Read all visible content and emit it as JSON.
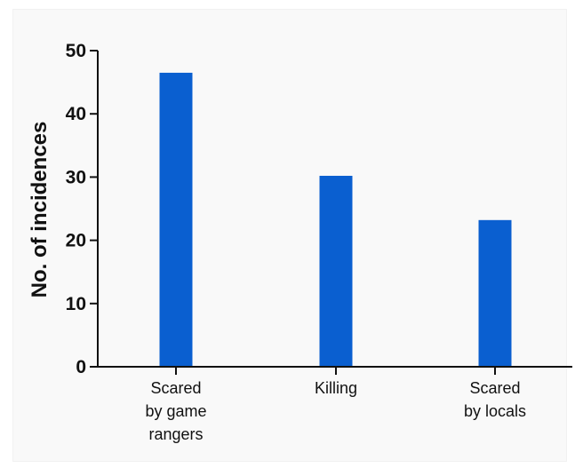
{
  "chart_data": {
    "type": "bar",
    "categories": [
      [
        "Scared",
        "by game",
        "rangers"
      ],
      [
        "Killing"
      ],
      [
        "Scared",
        "by locals"
      ]
    ],
    "values": [
      46.5,
      30.2,
      23.2
    ],
    "title": "",
    "xlabel": "",
    "ylabel": "No. of incidences",
    "ylim": [
      0,
      50
    ],
    "yticks": [
      "0",
      "10",
      "20",
      "30",
      "40",
      "50"
    ],
    "grid": false,
    "legend": "none",
    "bar_color": "#0a5fd0",
    "axis_color": "#111111"
  }
}
